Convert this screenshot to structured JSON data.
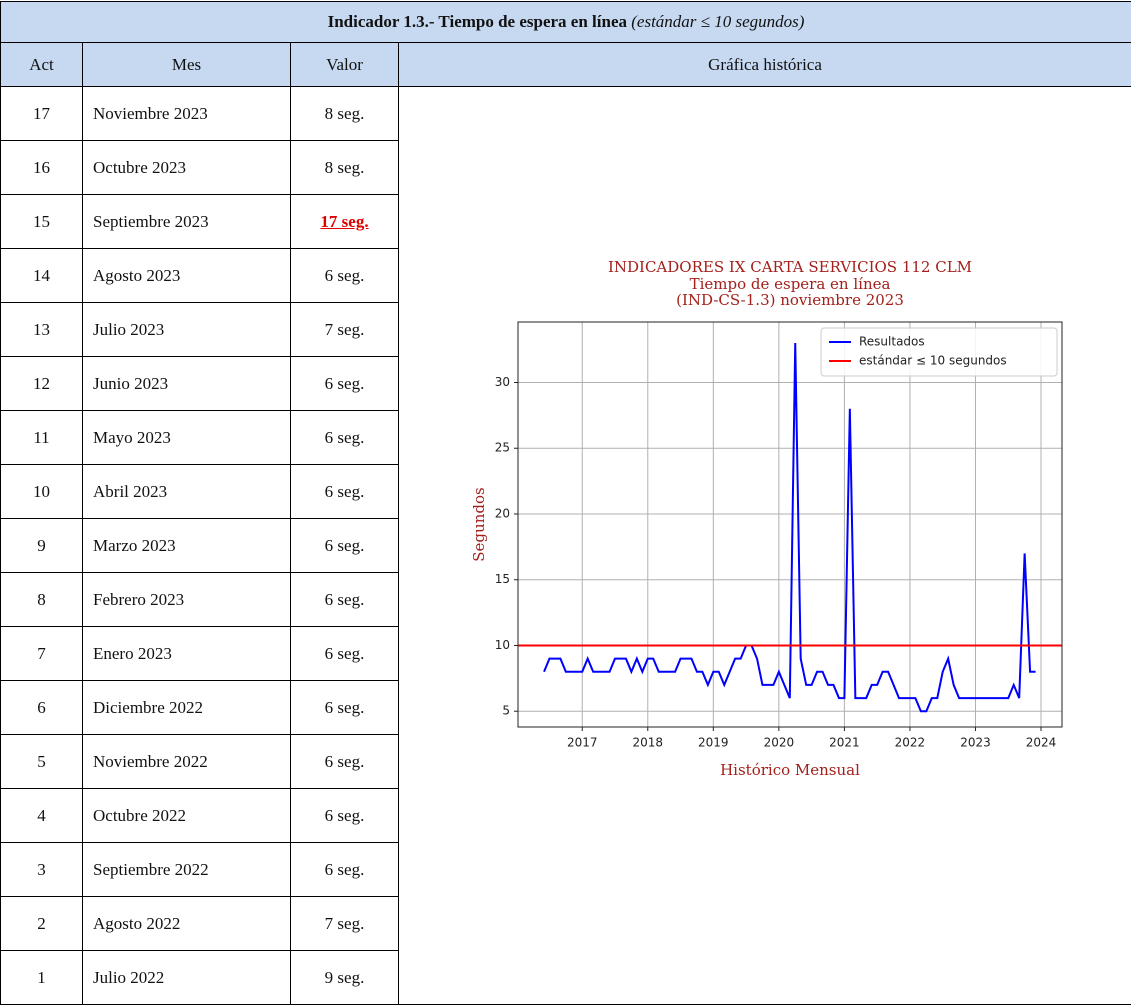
{
  "table": {
    "title": "Indicador 1.3.- Tiempo de espera en línea",
    "title_note": "(estándar ≤ 10 segundos)",
    "headers": [
      "Act",
      "Mes",
      "Valor",
      "Gráfica histórica"
    ],
    "rows": [
      [
        17,
        "Noviembre 2023",
        "8 seg."
      ],
      [
        16,
        "Octubre 2023",
        "8 seg."
      ],
      [
        15,
        "Septiembre 2023",
        "17 seg."
      ],
      [
        14,
        "Agosto 2023",
        "6 seg."
      ],
      [
        13,
        "Julio 2023",
        "7 seg."
      ],
      [
        12,
        "Junio 2023",
        "6 seg."
      ],
      [
        11,
        "Mayo 2023",
        "6 seg."
      ],
      [
        10,
        "Abril 2023",
        "6 seg."
      ],
      [
        9,
        "Marzo 2023",
        "6 seg."
      ],
      [
        8,
        "Febrero 2023",
        "6 seg."
      ],
      [
        7,
        "Enero 2023",
        "6 seg."
      ],
      [
        6,
        "Diciembre 2022",
        "6 seg."
      ],
      [
        5,
        "Noviembre 2022",
        "6 seg."
      ],
      [
        4,
        "Octubre 2022",
        "6 seg."
      ],
      [
        3,
        "Septiembre 2022",
        "6 seg."
      ],
      [
        2,
        "Agosto 2022",
        "7 seg."
      ],
      [
        1,
        "Julio 2022",
        "9 seg."
      ]
    ],
    "highlight_rows": [
      2
    ]
  },
  "chart_data": {
    "type": "line",
    "title": "INDICADORES IX CARTA SERVICIOS 112 CLM",
    "subtitle": [
      "Tiempo de espera en línea",
      "(IND-CS-1.3) noviembre 2023"
    ],
    "xlabel": "Histórico Mensual",
    "ylabel": "Segundos",
    "x": [
      2016.417,
      2016.5,
      2016.583,
      2016.667,
      2016.75,
      2016.833,
      2016.917,
      2017,
      2017.083,
      2017.167,
      2017.25,
      2017.333,
      2017.417,
      2017.5,
      2017.583,
      2017.667,
      2017.75,
      2017.833,
      2017.917,
      2018,
      2018.083,
      2018.167,
      2018.25,
      2018.333,
      2018.417,
      2018.5,
      2018.583,
      2018.667,
      2018.75,
      2018.833,
      2018.917,
      2019,
      2019.083,
      2019.167,
      2019.25,
      2019.333,
      2019.417,
      2019.5,
      2019.583,
      2019.667,
      2019.75,
      2019.833,
      2019.917,
      2020,
      2020.083,
      2020.167,
      2020.25,
      2020.333,
      2020.417,
      2020.5,
      2020.583,
      2020.667,
      2020.75,
      2020.833,
      2020.917,
      2021,
      2021.083,
      2021.167,
      2021.25,
      2021.333,
      2021.417,
      2021.5,
      2021.583,
      2021.667,
      2021.75,
      2021.833,
      2021.917,
      2022,
      2022.083,
      2022.167,
      2022.25,
      2022.333,
      2022.417,
      2022.5,
      2022.583,
      2022.667,
      2022.75,
      2022.833,
      2022.917,
      2023,
      2023.083,
      2023.167,
      2023.25,
      2023.333,
      2023.417,
      2023.5,
      2023.583,
      2023.667,
      2023.75,
      2023.833,
      2023.917
    ],
    "series": [
      {
        "name": "Resultados",
        "color": "#0000ff",
        "values": [
          8,
          9,
          9,
          9,
          8,
          8,
          8,
          8,
          9,
          8,
          8,
          8,
          8,
          9,
          9,
          9,
          8,
          9,
          8,
          9,
          9,
          8,
          8,
          8,
          8,
          9,
          9,
          9,
          8,
          8,
          7,
          8,
          8,
          7,
          8,
          9,
          9,
          10,
          10,
          9,
          7,
          7,
          7,
          8,
          7,
          6,
          33,
          9,
          7,
          7,
          8,
          8,
          7,
          7,
          6,
          6,
          28,
          6,
          6,
          6,
          7,
          7,
          8,
          8,
          7,
          6,
          6,
          6,
          6,
          5,
          5,
          6,
          6,
          8,
          9,
          7,
          6,
          6,
          6,
          6,
          6,
          6,
          6,
          6,
          6,
          6,
          7,
          6,
          17,
          8,
          8
        ]
      }
    ],
    "hline": {
      "name": "estándar ≤ 10 segundos",
      "value": 10,
      "color": "#ff0000"
    },
    "xlim": [
      2016.02,
      2024.32
    ],
    "xticks": [
      2017,
      2018,
      2019,
      2020,
      2021,
      2022,
      2023,
      2024
    ],
    "ylim": [
      3.8,
      34.6
    ],
    "yticks": [
      5,
      10,
      15,
      20,
      25,
      30
    ],
    "grid": true,
    "legend": "upper right"
  }
}
